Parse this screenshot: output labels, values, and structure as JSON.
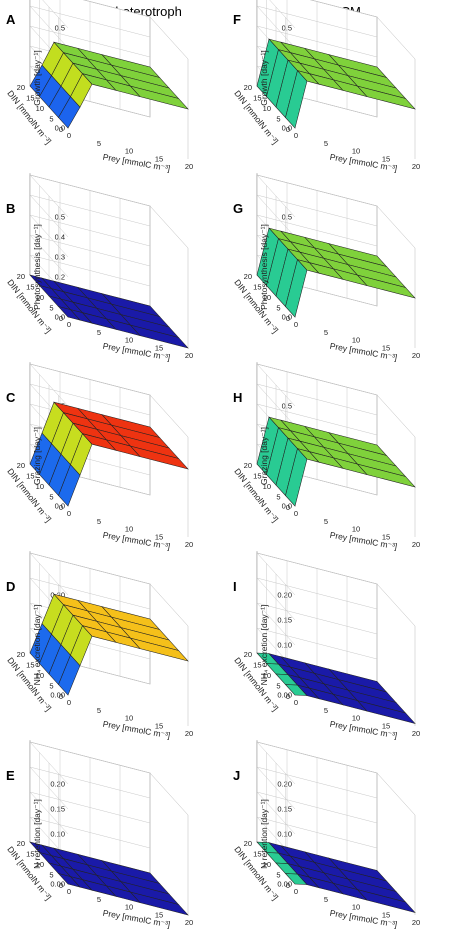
{
  "figure": {
    "columns": [
      {
        "title": "Strict heterotroph"
      },
      {
        "title": "NCM"
      }
    ]
  },
  "chart_data": [
    {
      "panel": "A",
      "type": "surface",
      "zlabel": "Growth [day⁻¹]",
      "xlabel": "Prey [mmolC m⁻³]",
      "ylabel": "DIN [mmolN m⁻³]",
      "x": [
        0,
        5,
        10,
        15,
        20
      ],
      "y": [
        0,
        5,
        10,
        15,
        20
      ],
      "zlim": [
        0,
        0.5
      ],
      "zticks": [
        "0.0",
        "0.1",
        "0.2",
        "0.3",
        "0.4",
        "0.5"
      ],
      "z_profile_by_prey": [
        0,
        0.12,
        0.25,
        0.25,
        0.25,
        0.25
      ],
      "prey_profile": [
        0,
        2,
        4,
        8,
        12,
        20
      ],
      "surface_color": "#7fd13b"
    },
    {
      "panel": "B",
      "type": "surface",
      "zlabel": "Photosynthesis [day⁻¹]",
      "xlabel": "Prey [mmolC m⁻³]",
      "ylabel": "DIN [mmolN m⁻³]",
      "x": [
        0,
        5,
        10,
        15,
        20
      ],
      "y": [
        0,
        5,
        10,
        15,
        20
      ],
      "zlim": [
        0,
        0.5
      ],
      "zticks": [
        "0.0",
        "0.1",
        "0.2",
        "0.3",
        "0.4",
        "0.5"
      ],
      "z_profile_by_prey": [
        0,
        0,
        0,
        0,
        0,
        0
      ],
      "prey_profile": [
        0,
        2,
        4,
        8,
        12,
        20
      ],
      "surface_color": "#1a1aa8"
    },
    {
      "panel": "C",
      "type": "surface",
      "zlabel": "Grazing [day⁻¹]",
      "xlabel": "Prey [mmolC m⁻³]",
      "ylabel": "DIN [mmolN m⁻³]",
      "x": [
        0,
        5,
        10,
        15,
        20
      ],
      "y": [
        0,
        5,
        10,
        15,
        20
      ],
      "zlim": [
        0,
        0.5
      ],
      "zticks": [
        "0.0",
        "0.1",
        "0.2",
        "0.3",
        "0.4",
        "0.5"
      ],
      "z_profile_by_prey": [
        0,
        0.17,
        0.34,
        0.34,
        0.34,
        0.34
      ],
      "prey_profile": [
        0,
        2,
        4,
        8,
        12,
        20
      ],
      "surface_color": "#ee3311"
    },
    {
      "panel": "D",
      "type": "surface",
      "zlabel": "NH₄ excretion [day⁻¹]",
      "xlabel": "Prey [mmolC m⁻³]",
      "ylabel": "DIN [mmolN m⁻³]",
      "x": [
        0,
        5,
        10,
        15,
        20
      ],
      "y": [
        0,
        5,
        10,
        15,
        20
      ],
      "zlim": [
        0,
        0.2
      ],
      "zticks": [
        "0.00",
        "0.05",
        "0.10",
        "0.15",
        "0.20"
      ],
      "z_profile_by_prey": [
        0,
        0.065,
        0.13,
        0.13,
        0.13,
        0.13
      ],
      "prey_profile": [
        0,
        2,
        4,
        8,
        12,
        20
      ],
      "surface_color": "#f5c01a"
    },
    {
      "panel": "E",
      "type": "surface",
      "zlabel": "N retention [day⁻¹]",
      "xlabel": "Prey [mmolC m⁻³]",
      "ylabel": "DIN [mmolN m⁻³]",
      "x": [
        0,
        5,
        10,
        15,
        20
      ],
      "y": [
        0,
        5,
        10,
        15,
        20
      ],
      "zlim": [
        0,
        0.2
      ],
      "zticks": [
        "0.00",
        "0.05",
        "0.10",
        "0.15",
        "0.20"
      ],
      "z_profile_by_prey": [
        0,
        0,
        0,
        0,
        0,
        0
      ],
      "prey_profile": [
        0,
        2,
        4,
        8,
        12,
        20
      ],
      "surface_color": "#1a1aa8"
    },
    {
      "panel": "F",
      "type": "surface",
      "zlabel": "Growth [day⁻¹]",
      "xlabel": "Prey [mmolC m⁻³]",
      "ylabel": "DIN [mmolN m⁻³]",
      "x": [
        0,
        5,
        10,
        15,
        20
      ],
      "y": [
        0,
        5,
        10,
        15,
        20
      ],
      "zlim": [
        0,
        0.5
      ],
      "zticks": [
        "0.0",
        "0.1",
        "0.2",
        "0.3",
        "0.4",
        "0.5"
      ],
      "z_profile_by_prey": [
        0,
        0.25,
        0.25,
        0.25,
        0.25,
        0.25
      ],
      "prey_profile": [
        0,
        2,
        4,
        8,
        12,
        20
      ],
      "surface_color": "#7fd13b"
    },
    {
      "panel": "G",
      "type": "surface",
      "zlabel": "Photosynthesis [day⁻¹]",
      "xlabel": "Prey [mmolC m⁻³]",
      "ylabel": "DIN [mmolN m⁻³]",
      "x": [
        0,
        5,
        10,
        15,
        20
      ],
      "y": [
        0,
        5,
        10,
        15,
        20
      ],
      "zlim": [
        0,
        0.5
      ],
      "zticks": [
        "0.0",
        "0.1",
        "0.2",
        "0.3",
        "0.4",
        "0.5"
      ],
      "z_profile_by_prey": [
        0,
        0.25,
        0.25,
        0.25,
        0.25,
        0.25
      ],
      "prey_profile": [
        0,
        2,
        4,
        8,
        12,
        20
      ],
      "surface_color": "#7fd13b"
    },
    {
      "panel": "H",
      "type": "surface",
      "zlabel": "Grazing [day⁻¹]",
      "xlabel": "Prey [mmolC m⁻³]",
      "ylabel": "DIN [mmolN m⁻³]",
      "x": [
        0,
        5,
        10,
        15,
        20
      ],
      "y": [
        0,
        5,
        10,
        15,
        20
      ],
      "zlim": [
        0,
        0.5
      ],
      "zticks": [
        "0.0",
        "0.1",
        "0.2",
        "0.3",
        "0.4",
        "0.5"
      ],
      "z_profile_by_prey": [
        0,
        0.25,
        0.25,
        0.25,
        0.25,
        0.25
      ],
      "prey_profile": [
        0,
        2,
        4,
        8,
        12,
        20
      ],
      "surface_color": "#7fd13b"
    },
    {
      "panel": "I",
      "type": "surface",
      "zlabel": "NH₄ excretion [day⁻¹]",
      "xlabel": "Prey [mmolC m⁻³]",
      "ylabel": "DIN [mmolN m⁻³]",
      "x": [
        0,
        5,
        10,
        15,
        20
      ],
      "y": [
        0,
        5,
        10,
        15,
        20
      ],
      "zlim": [
        0,
        0.2
      ],
      "zticks": [
        "0.00",
        "0.05",
        "0.10",
        "0.15",
        "0.20"
      ],
      "z_profile_by_prey": [
        0,
        0.005,
        0.005,
        0.005,
        0.005,
        0.005
      ],
      "prey_profile": [
        0,
        2,
        4,
        8,
        12,
        20
      ],
      "surface_color": "#1a1aa8"
    },
    {
      "panel": "J",
      "type": "surface",
      "zlabel": "N retention [day⁻¹]",
      "xlabel": "Prey [mmolC m⁻³]",
      "ylabel": "DIN [mmolN m⁻³]",
      "x": [
        0,
        5,
        10,
        15,
        20
      ],
      "y": [
        0,
        5,
        10,
        15,
        20
      ],
      "zlim": [
        0,
        0.2
      ],
      "zticks": [
        "0.00",
        "0.05",
        "0.10",
        "0.15",
        "0.20"
      ],
      "z_profile_by_prey": [
        0,
        0.005,
        0.005,
        0.005,
        0.005,
        0.005
      ],
      "prey_profile": [
        0,
        2,
        4,
        8,
        12,
        20
      ],
      "surface_color": "#1a1aa8"
    }
  ]
}
